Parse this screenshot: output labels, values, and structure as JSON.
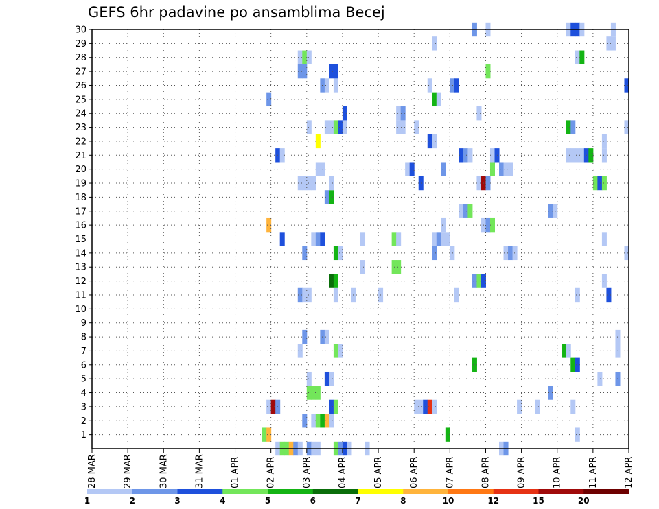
{
  "chart_data": {
    "type": "heatmap",
    "title": "GEFS 6hr padavine po ansamblima Becej",
    "xlabel": "",
    "ylabel": "",
    "x_tick_labels": [
      "28 MAR",
      "29 MAR",
      "30 MAR",
      "31 MAR",
      "01 APR",
      "02 APR",
      "03 APR",
      "04 APR",
      "05 APR",
      "06 APR",
      "07 APR",
      "08 APR",
      "09 APR",
      "10 APR",
      "11 APR",
      "12 APR"
    ],
    "y_tick_labels": [
      "1",
      "2",
      "3",
      "4",
      "5",
      "6",
      "7",
      "8",
      "9",
      "10",
      "11",
      "12",
      "13",
      "14",
      "15",
      "16",
      "17",
      "18",
      "19",
      "20",
      "21",
      "22",
      "23",
      "24",
      "25",
      "26",
      "27",
      "28",
      "29",
      "30"
    ],
    "x_range_days": [
      0,
      15
    ],
    "y_range": [
      0,
      30
    ],
    "grid": true,
    "legend_position": "bottom",
    "color_levels": [
      {
        "label": "1",
        "color": "#b4c8f5"
      },
      {
        "label": "2",
        "color": "#6e96e8"
      },
      {
        "label": "3",
        "color": "#1e50dc"
      },
      {
        "label": "4",
        "color": "#73e65a"
      },
      {
        "label": "5",
        "color": "#14b414"
      },
      {
        "label": "6",
        "color": "#0a6e0a"
      },
      {
        "label": "7",
        "color": "#ffff00"
      },
      {
        "label": "8",
        "color": "#ffb43c"
      },
      {
        "label": "10",
        "color": "#ff7814"
      },
      {
        "label": "12",
        "color": "#e63214"
      },
      {
        "label": "15",
        "color": "#a00a0a"
      },
      {
        "label": "20",
        "color": "#6e0000"
      }
    ],
    "colorbar_labels": [
      "1",
      "2",
      "3",
      "4",
      "5",
      "6",
      "7",
      "8",
      "10",
      "12",
      "15",
      "20"
    ],
    "cells_format": "[member, day_offset_from_28MAR, color_level_index]",
    "cells": [
      [
        1,
        4.75,
        3
      ],
      [
        1,
        4.875,
        7
      ],
      [
        1,
        9.875,
        4
      ],
      [
        1,
        13.5,
        0
      ],
      [
        2,
        5.875,
        1
      ],
      [
        2,
        6.125,
        0
      ],
      [
        2,
        6.25,
        3
      ],
      [
        2,
        6.375,
        4
      ],
      [
        2,
        6.5,
        7
      ],
      [
        2,
        6.625,
        0
      ],
      [
        3,
        4.875,
        0
      ],
      [
        3,
        5.0,
        10
      ],
      [
        3,
        5.125,
        1
      ],
      [
        3,
        6.625,
        2
      ],
      [
        3,
        6.75,
        3
      ],
      [
        3,
        9.0,
        0
      ],
      [
        3,
        9.125,
        0
      ],
      [
        3,
        9.25,
        2
      ],
      [
        3,
        9.375,
        9
      ],
      [
        3,
        9.5,
        0
      ],
      [
        3,
        11.875,
        0
      ],
      [
        3,
        12.375,
        0
      ],
      [
        3,
        13.375,
        0
      ],
      [
        4,
        6.0,
        3
      ],
      [
        4,
        6.125,
        3
      ],
      [
        4,
        6.25,
        3
      ],
      [
        4,
        12.75,
        1
      ],
      [
        5,
        6.0,
        0
      ],
      [
        5,
        6.5,
        2
      ],
      [
        5,
        6.625,
        0
      ],
      [
        5,
        14.125,
        0
      ],
      [
        5,
        14.625,
        1
      ],
      [
        6,
        10.625,
        4
      ],
      [
        6,
        13.375,
        4
      ],
      [
        6,
        13.5,
        2
      ],
      [
        7,
        5.75,
        0
      ],
      [
        7,
        6.75,
        3
      ],
      [
        7,
        6.875,
        0
      ],
      [
        7,
        13.125,
        4
      ],
      [
        7,
        13.25,
        0
      ],
      [
        7,
        14.625,
        0
      ],
      [
        8,
        5.875,
        1
      ],
      [
        8,
        6.375,
        1
      ],
      [
        8,
        6.5,
        0
      ],
      [
        8,
        14.625,
        0
      ],
      [
        11,
        5.75,
        1
      ],
      [
        11,
        5.875,
        0
      ],
      [
        11,
        6.0,
        0
      ],
      [
        11,
        6.75,
        0
      ],
      [
        11,
        7.25,
        0
      ],
      [
        11,
        8.0,
        0
      ],
      [
        11,
        10.125,
        0
      ],
      [
        11,
        13.5,
        0
      ],
      [
        11,
        14.375,
        2
      ],
      [
        12,
        6.625,
        5
      ],
      [
        12,
        6.75,
        4
      ],
      [
        12,
        10.625,
        1
      ],
      [
        12,
        10.75,
        3
      ],
      [
        12,
        10.875,
        2
      ],
      [
        12,
        14.25,
        0
      ],
      [
        13,
        7.5,
        0
      ],
      [
        13,
        8.375,
        3
      ],
      [
        13,
        8.5,
        3
      ],
      [
        14,
        5.875,
        1
      ],
      [
        14,
        6.75,
        4
      ],
      [
        14,
        6.875,
        0
      ],
      [
        14,
        9.5,
        1
      ],
      [
        14,
        10.0,
        0
      ],
      [
        14,
        11.5,
        0
      ],
      [
        14,
        11.625,
        1
      ],
      [
        14,
        11.75,
        0
      ],
      [
        14,
        14.875,
        0
      ],
      [
        15,
        5.25,
        2
      ],
      [
        15,
        6.125,
        0
      ],
      [
        15,
        6.25,
        1
      ],
      [
        15,
        6.375,
        2
      ],
      [
        15,
        7.5,
        0
      ],
      [
        15,
        8.375,
        3
      ],
      [
        15,
        8.5,
        0
      ],
      [
        15,
        9.5,
        0
      ],
      [
        15,
        9.625,
        1
      ],
      [
        15,
        9.75,
        0
      ],
      [
        15,
        9.875,
        0
      ],
      [
        15,
        14.25,
        0
      ],
      [
        16,
        4.875,
        7
      ],
      [
        16,
        9.75,
        0
      ],
      [
        16,
        10.875,
        0
      ],
      [
        16,
        11.0,
        1
      ],
      [
        16,
        11.125,
        3
      ],
      [
        17,
        10.25,
        0
      ],
      [
        17,
        10.375,
        1
      ],
      [
        17,
        10.5,
        3
      ],
      [
        17,
        12.75,
        1
      ],
      [
        17,
        12.875,
        0
      ],
      [
        18,
        6.5,
        1
      ],
      [
        18,
        6.625,
        4
      ],
      [
        19,
        5.75,
        0
      ],
      [
        19,
        5.875,
        0
      ],
      [
        19,
        6.0,
        0
      ],
      [
        19,
        6.125,
        0
      ],
      [
        19,
        6.625,
        0
      ],
      [
        19,
        9.125,
        2
      ],
      [
        19,
        10.75,
        0
      ],
      [
        19,
        10.875,
        10
      ],
      [
        19,
        11.0,
        1
      ],
      [
        19,
        14.0,
        3
      ],
      [
        19,
        14.125,
        2
      ],
      [
        19,
        14.25,
        3
      ],
      [
        20,
        6.25,
        0
      ],
      [
        20,
        6.375,
        0
      ],
      [
        20,
        8.75,
        0
      ],
      [
        20,
        8.875,
        2
      ],
      [
        20,
        9.75,
        1
      ],
      [
        20,
        11.125,
        3
      ],
      [
        20,
        11.375,
        1
      ],
      [
        20,
        11.5,
        0
      ],
      [
        20,
        11.625,
        0
      ],
      [
        21,
        5.125,
        2
      ],
      [
        21,
        5.25,
        0
      ],
      [
        21,
        10.25,
        2
      ],
      [
        21,
        10.375,
        1
      ],
      [
        21,
        10.5,
        0
      ],
      [
        21,
        11.125,
        0
      ],
      [
        21,
        11.25,
        2
      ],
      [
        21,
        13.25,
        0
      ],
      [
        21,
        13.375,
        0
      ],
      [
        21,
        13.5,
        0
      ],
      [
        21,
        13.625,
        0
      ],
      [
        21,
        13.75,
        2
      ],
      [
        21,
        13.875,
        4
      ],
      [
        21,
        14.25,
        0
      ],
      [
        22,
        6.25,
        6
      ],
      [
        22,
        9.375,
        2
      ],
      [
        22,
        9.5,
        0
      ],
      [
        22,
        14.25,
        0
      ],
      [
        23,
        6.0,
        0
      ],
      [
        23,
        6.5,
        0
      ],
      [
        23,
        6.625,
        0
      ],
      [
        23,
        6.75,
        3
      ],
      [
        23,
        6.875,
        2
      ],
      [
        23,
        7.0,
        0
      ],
      [
        23,
        8.5,
        0
      ],
      [
        23,
        8.625,
        0
      ],
      [
        23,
        9.0,
        0
      ],
      [
        23,
        13.25,
        4
      ],
      [
        23,
        13.375,
        1
      ],
      [
        23,
        14.875,
        0
      ],
      [
        24,
        7.0,
        2
      ],
      [
        24,
        8.5,
        0
      ],
      [
        24,
        8.625,
        1
      ],
      [
        24,
        10.75,
        0
      ],
      [
        25,
        4.875,
        1
      ],
      [
        25,
        9.5,
        4
      ],
      [
        25,
        9.625,
        0
      ],
      [
        26,
        6.375,
        1
      ],
      [
        26,
        6.5,
        0
      ],
      [
        26,
        6.75,
        0
      ],
      [
        26,
        9.375,
        0
      ],
      [
        26,
        10.0,
        1
      ],
      [
        26,
        10.125,
        2
      ],
      [
        26,
        14.875,
        2
      ],
      [
        26,
        15.0,
        5
      ],
      [
        27,
        5.75,
        1
      ],
      [
        27,
        5.875,
        1
      ],
      [
        27,
        6.625,
        2
      ],
      [
        27,
        6.75,
        2
      ],
      [
        27,
        11.0,
        3
      ],
      [
        28,
        5.75,
        0
      ],
      [
        28,
        5.875,
        3
      ],
      [
        28,
        6.0,
        0
      ],
      [
        28,
        13.5,
        0
      ],
      [
        28,
        13.625,
        4
      ],
      [
        29,
        9.5,
        0
      ],
      [
        29,
        14.375,
        0
      ],
      [
        29,
        14.5,
        0
      ],
      [
        30,
        10.625,
        1
      ],
      [
        30,
        11.0,
        0
      ],
      [
        30,
        13.25,
        0
      ],
      [
        30,
        13.375,
        2
      ],
      [
        30,
        13.5,
        2
      ],
      [
        30,
        13.625,
        0
      ],
      [
        30,
        14.5,
        0
      ],
      [
        0,
        5.125,
        0
      ],
      [
        0,
        5.25,
        3
      ],
      [
        0,
        5.375,
        3
      ],
      [
        0,
        5.5,
        7
      ],
      [
        0,
        5.625,
        1
      ],
      [
        0,
        5.75,
        0
      ],
      [
        0,
        6.0,
        1
      ],
      [
        0,
        6.125,
        0
      ],
      [
        0,
        6.25,
        0
      ],
      [
        0,
        6.75,
        3
      ],
      [
        0,
        6.875,
        1
      ],
      [
        0,
        7.0,
        2
      ],
      [
        0,
        7.125,
        0
      ],
      [
        0,
        7.625,
        0
      ],
      [
        0,
        11.375,
        0
      ],
      [
        0,
        11.5,
        1
      ]
    ]
  }
}
